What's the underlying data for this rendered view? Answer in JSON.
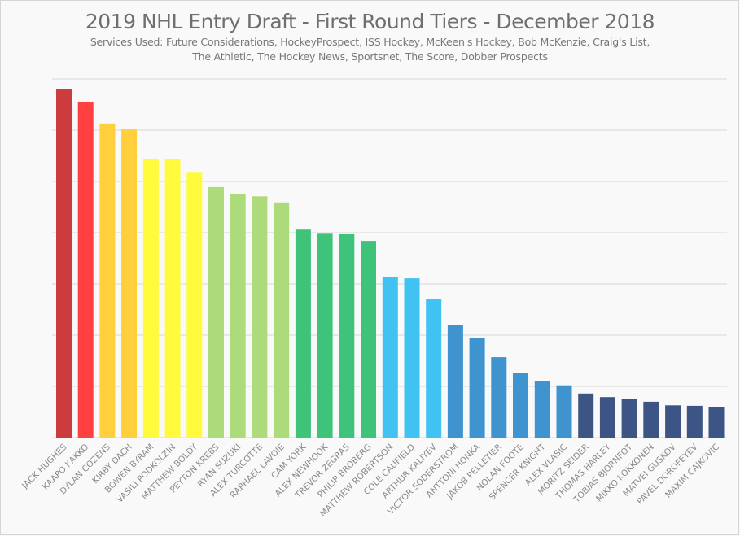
{
  "chart_data": {
    "type": "bar",
    "title": "2019 NHL Entry Draft - First Round Tiers - December 2018",
    "subtitle_lines": [
      "Services Used: Future Considerations, HockeyProspect, ISS Hockey, McKeen's Hockey, Bob McKenzie, Craig's List,",
      "The Athletic, The Hockey News, Sportsnet, The Score, Dobber Prospects"
    ],
    "xlabel": "",
    "ylabel": "",
    "ylim": [
      0,
      7
    ],
    "grid": true,
    "y_tick_labels_shown": false,
    "legend": "none",
    "categories": [
      "JACK HUGHES",
      "KAAPO KAKKO",
      "DYLAN COZENS",
      "KIRBY DACH",
      "BOWEN BYRAM",
      "VASILI PODKOLZIN",
      "MATTHEW BOLDY",
      "PEYTON KREBS",
      "RYAN SUZUKI",
      "ALEX TURCOTTE",
      "RAPHAEL LAVOIE",
      "CAM YORK",
      "ALEX NEWHOOK",
      "TREVOR ZEGRAS",
      "PHILIP BROBERG",
      "MATTHEW ROBERTSON",
      "COLE CAUFIELD",
      "ARTHUR KALIYEV",
      "VICTOR SODERSTROM",
      "ANTTONI HONKA",
      "JAKOB PELLETIER",
      "NOLAN FOOTE",
      "SPENCER KNIGHT",
      "ALEX VLASIC",
      "MORITZ SEIDER",
      "THOMAS HARLEY",
      "TOBIAS BJORNFOT",
      "MIKKO KOKKONEN",
      "MATVEI GUSKOV",
      "PAVEL DOROFEYEV",
      "MAXIM CAJKOVIC"
    ],
    "values": [
      6.81,
      6.54,
      6.13,
      6.03,
      5.44,
      5.43,
      5.17,
      4.89,
      4.76,
      4.71,
      4.59,
      4.06,
      3.98,
      3.97,
      3.84,
      3.13,
      3.11,
      2.71,
      2.19,
      1.94,
      1.57,
      1.27,
      1.1,
      1.02,
      0.86,
      0.79,
      0.75,
      0.7,
      0.63,
      0.62,
      0.59
    ],
    "tiers": [
      1,
      2,
      3,
      3,
      4,
      4,
      4,
      5,
      5,
      5,
      5,
      6,
      6,
      6,
      6,
      7,
      7,
      7,
      8,
      8,
      8,
      8,
      8,
      8,
      9,
      9,
      9,
      9,
      9,
      9,
      9
    ],
    "tier_colors": {
      "1": "#cc3c3e",
      "2": "#ff4040",
      "3": "#ffcf3e",
      "4": "#fffb3c",
      "5": "#addb7b",
      "6": "#3fc37b",
      "7": "#40c2f2",
      "8": "#3f94cf",
      "9": "#3d5585"
    }
  }
}
